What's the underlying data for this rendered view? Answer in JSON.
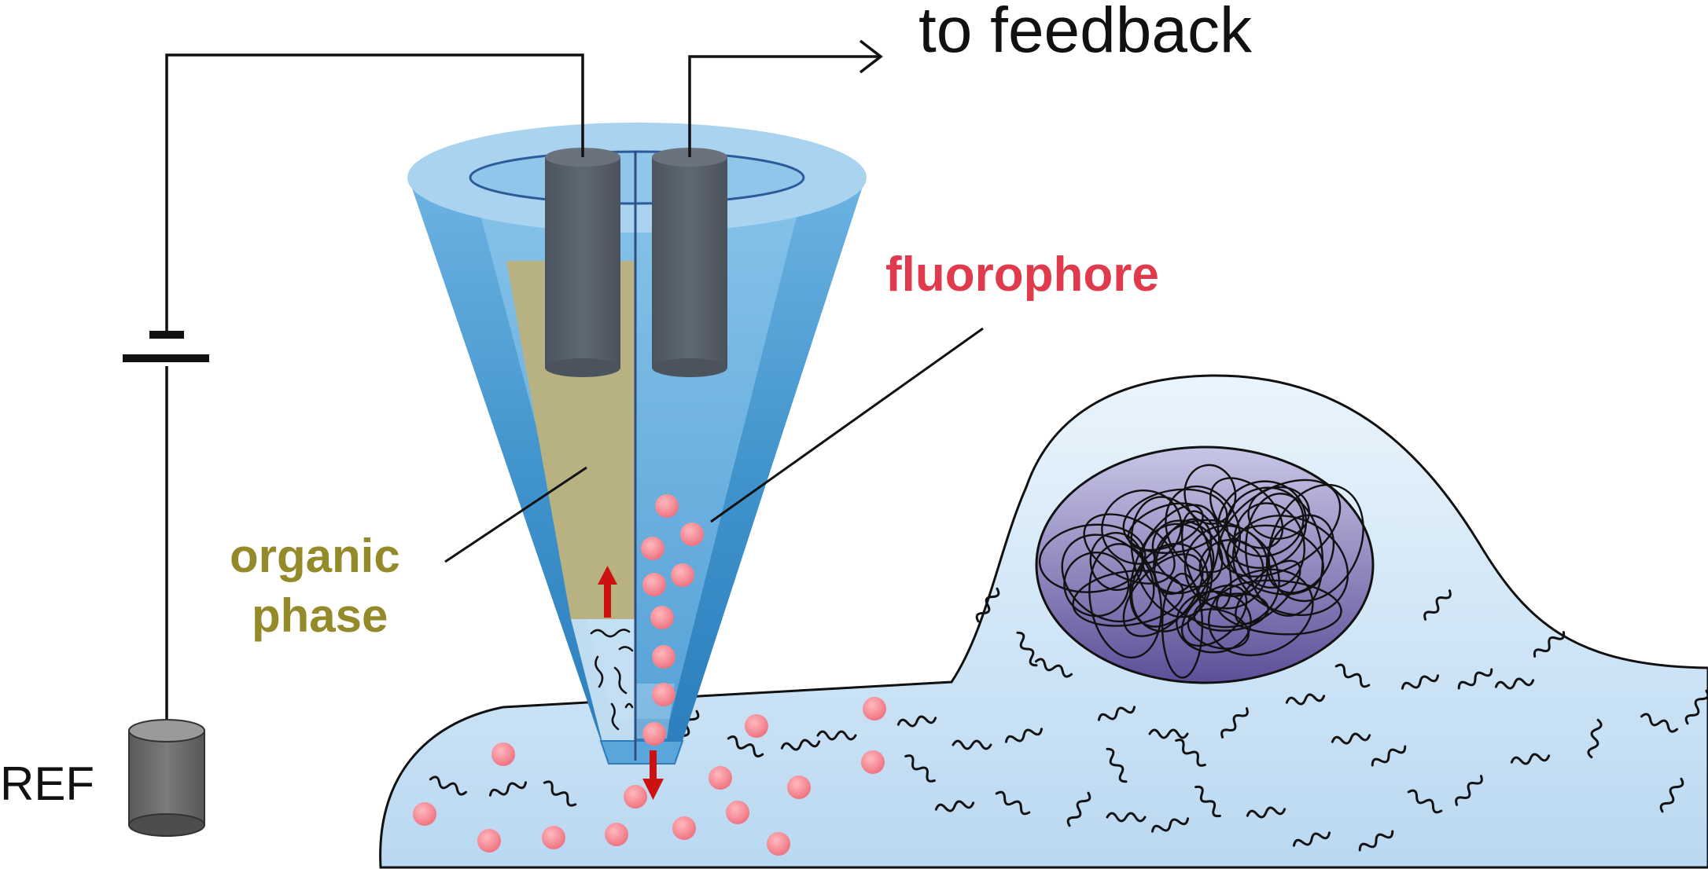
{
  "labels": {
    "feedback": "to feedback",
    "fluorophore": "fluorophore",
    "organic_line1": "organic",
    "organic_line2": "phase",
    "ref": "REF"
  },
  "colors": {
    "fluorophore_text": "#e03a4d",
    "organic_text": "#948a2a",
    "pipette_dark": "#3b8fc8",
    "pipette_light": "#a9d3ef",
    "organic_phase": "#b8b283",
    "electrode": "#565f69",
    "cell_fill": "#cfe4f5",
    "nucleus": "#6b5f9c",
    "dot": "#f07a86",
    "arrow": "#cc1111",
    "wire": "#111111"
  },
  "icons": [
    "pipette-tip",
    "carbon-electrode",
    "reference-electrode",
    "battery-symbol",
    "cell",
    "nucleus"
  ]
}
